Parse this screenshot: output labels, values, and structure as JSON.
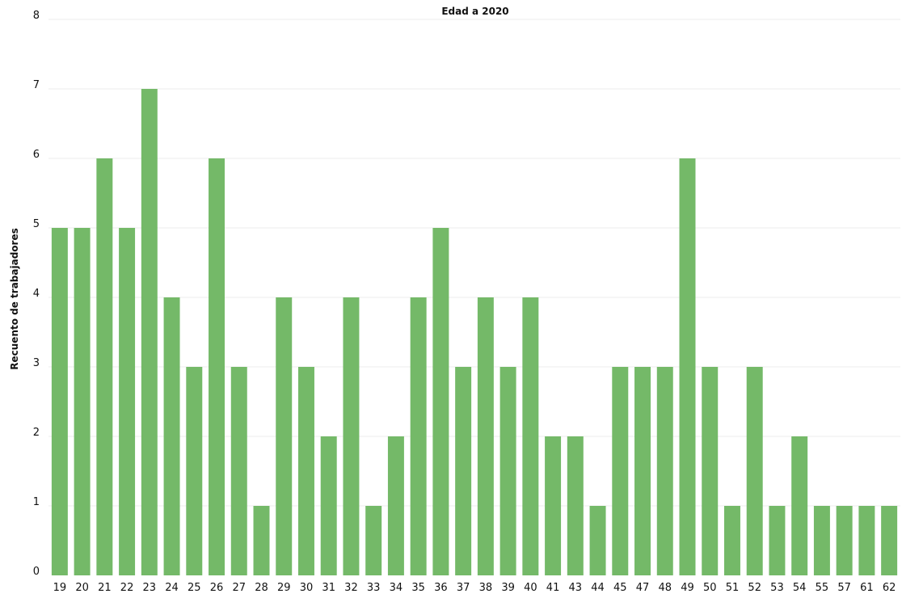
{
  "chart_data": {
    "type": "bar",
    "title": "Edad a 2020",
    "xlabel": "",
    "ylabel": "Recuento de trabajadores",
    "ylim": [
      0,
      8
    ],
    "y_ticks": [
      "0",
      "1",
      "2",
      "3",
      "4",
      "5",
      "6",
      "7",
      "8"
    ],
    "categories": [
      "19",
      "20",
      "21",
      "22",
      "23",
      "24",
      "25",
      "26",
      "27",
      "28",
      "29",
      "30",
      "31",
      "32",
      "33",
      "34",
      "35",
      "36",
      "37",
      "38",
      "39",
      "40",
      "41",
      "43",
      "44",
      "45",
      "47",
      "48",
      "49",
      "50",
      "51",
      "52",
      "53",
      "54",
      "55",
      "57",
      "61",
      "62"
    ],
    "values": [
      5,
      5,
      6,
      5,
      7,
      4,
      3,
      6,
      3,
      1,
      4,
      3,
      2,
      4,
      1,
      2,
      4,
      5,
      3,
      4,
      3,
      4,
      2,
      2,
      1,
      3,
      3,
      3,
      6,
      3,
      1,
      3,
      1,
      2,
      1,
      1,
      1,
      1
    ],
    "grid": true,
    "bar_color": "#74b968",
    "grid_color": "#ececec"
  }
}
